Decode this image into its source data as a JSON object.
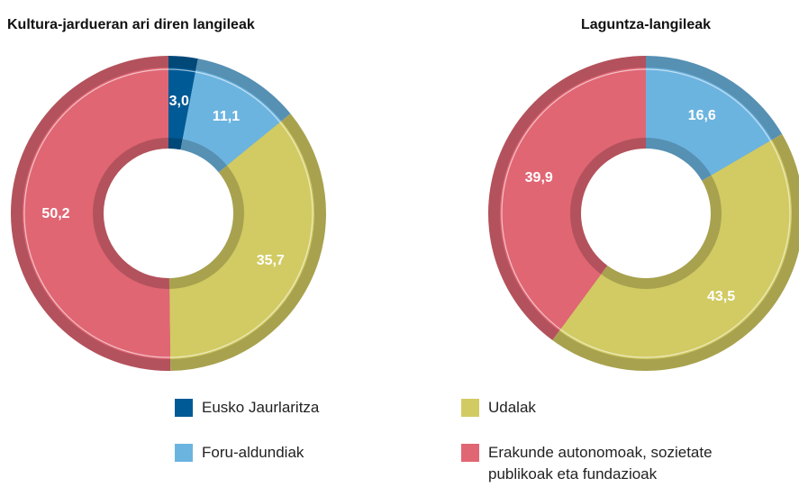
{
  "chart_data": [
    {
      "type": "pie",
      "title": "Kultura-jardueran ari diren langileak",
      "values": [
        3.0,
        11.1,
        35.7,
        50.2
      ],
      "value_labels": [
        "3,0",
        "11,1",
        "35,7",
        "50,2"
      ],
      "colors": [
        "#005a96",
        "#6cb4e0",
        "#d2cb63",
        "#e06673"
      ]
    },
    {
      "type": "pie",
      "title": "Laguntza-langileak",
      "values": [
        16.6,
        43.5,
        39.9
      ],
      "value_labels": [
        "16,6",
        "43,5",
        "39,9"
      ],
      "colors": [
        "#6cb4e0",
        "#d2cb63",
        "#e06673"
      ]
    }
  ],
  "legend": [
    {
      "name": "Eusko Jaurlaritza",
      "color": "#005a96"
    },
    {
      "name": "Foru-aldundiak",
      "color": "#6cb4e0"
    },
    {
      "name": "Udalak",
      "color": "#d2cb63"
    },
    {
      "name": "Erakunde autonomoak, sozietate publikoak eta fundazioak",
      "color": "#e06673"
    }
  ]
}
